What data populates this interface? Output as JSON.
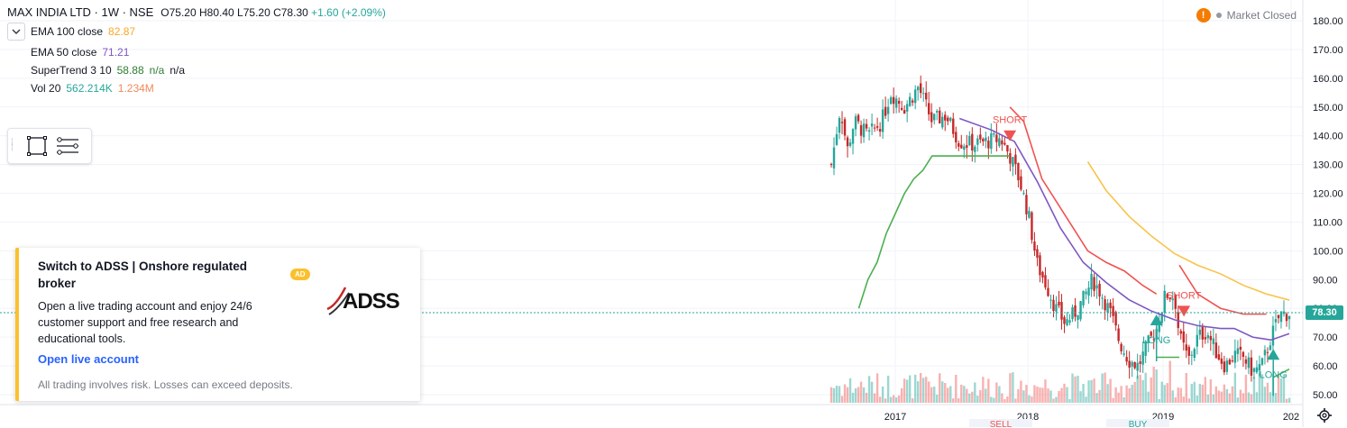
{
  "header": {
    "symbol_title": "MAX INDIA LTD · 1W · NSE",
    "ohlc": {
      "open": "O75.20",
      "high": "H80.40",
      "low": "L75.20",
      "close": "C78.30",
      "change": "+1.60 (+2.09%)"
    },
    "collapse_icon": "chevron-down-icon"
  },
  "indicators": [
    {
      "label": "EMA 100 close",
      "values": [
        "82.87"
      ],
      "colors": [
        "#f9a825"
      ]
    },
    {
      "label": "EMA 50 close",
      "values": [
        "71.21"
      ],
      "colors": [
        "#7e57c2"
      ]
    },
    {
      "label": "SuperTrend 3 10",
      "values": [
        "58.88",
        "n/a",
        "n/a"
      ],
      "colors": [
        "#2e7d32",
        "#2e7d32",
        "#131722"
      ]
    },
    {
      "label": "Vol 20",
      "values": [
        "562.214K",
        "1.234M"
      ],
      "colors": [
        "#26a69a",
        "#ef8a5c"
      ]
    }
  ],
  "toolbar": {
    "icons": [
      "rectangle-icon",
      "object-tree-icon"
    ]
  },
  "status": {
    "text": "Market Closed",
    "warning_icon": "!"
  },
  "ad": {
    "title": "Switch to ADSS | Onshore regulated broker",
    "badge": "AD",
    "body": "Open a live trading account and enjoy 24/6 customer support and free research and educational tools.",
    "cta": "Open live account",
    "disclaimer": "All trading involves risk. Losses can exceed deposits.",
    "logo_text": "ADSS"
  },
  "chart_data": {
    "type": "candlestick",
    "y_ticks": [
      "180.00",
      "170.00",
      "160.00",
      "150.00",
      "140.00",
      "130.00",
      "120.00",
      "110.00",
      "100.00",
      "90.00",
      "80.00",
      "70.00",
      "60.00",
      "50.00"
    ],
    "x_ticks": [
      "2017",
      "2018",
      "2019",
      "202"
    ],
    "ylim": [
      47,
      183
    ],
    "last_price": "78.30",
    "signals": [
      {
        "text": "SHORT",
        "direction": "down",
        "color": "#ef5350",
        "t": 0.39,
        "price": 140
      },
      {
        "text": "SHORT",
        "direction": "down",
        "color": "#ef5350",
        "t": 0.77,
        "price": 79
      },
      {
        "text": "LONG",
        "direction": "up",
        "color": "#26a69a",
        "t": 0.71,
        "price": 76
      },
      {
        "text": "LONG",
        "direction": "up",
        "color": "#26a69a",
        "t": 0.965,
        "price": 64
      }
    ],
    "bottom_labels": [
      "SELL",
      "BUY"
    ],
    "close_path": [
      [
        0,
        130
      ],
      [
        0.02,
        150
      ],
      [
        0.035,
        135
      ],
      [
        0.05,
        145
      ],
      [
        0.08,
        140
      ],
      [
        0.11,
        145
      ],
      [
        0.13,
        155
      ],
      [
        0.16,
        150
      ],
      [
        0.19,
        157
      ],
      [
        0.22,
        145
      ],
      [
        0.25,
        147
      ],
      [
        0.28,
        138
      ],
      [
        0.31,
        137
      ],
      [
        0.34,
        138
      ],
      [
        0.37,
        139
      ],
      [
        0.39,
        133
      ],
      [
        0.41,
        125
      ],
      [
        0.43,
        113
      ],
      [
        0.45,
        95
      ],
      [
        0.47,
        88
      ],
      [
        0.49,
        80
      ],
      [
        0.51,
        75
      ],
      [
        0.53,
        78
      ],
      [
        0.55,
        83
      ],
      [
        0.57,
        90
      ],
      [
        0.59,
        85
      ],
      [
        0.61,
        78
      ],
      [
        0.63,
        68
      ],
      [
        0.65,
        62
      ],
      [
        0.67,
        60
      ],
      [
        0.69,
        67
      ],
      [
        0.71,
        73
      ],
      [
        0.73,
        85
      ],
      [
        0.75,
        84
      ],
      [
        0.76,
        70
      ],
      [
        0.78,
        62
      ],
      [
        0.8,
        70
      ],
      [
        0.82,
        72
      ],
      [
        0.84,
        65
      ],
      [
        0.86,
        60
      ],
      [
        0.88,
        64
      ],
      [
        0.9,
        63
      ],
      [
        0.92,
        58
      ],
      [
        0.94,
        60
      ],
      [
        0.96,
        70
      ],
      [
        0.98,
        78
      ],
      [
        1.0,
        78.3
      ]
    ],
    "ema100": [
      [
        0.56,
        131
      ],
      [
        0.6,
        121
      ],
      [
        0.65,
        112
      ],
      [
        0.7,
        105
      ],
      [
        0.75,
        99
      ],
      [
        0.8,
        95
      ],
      [
        0.85,
        92
      ],
      [
        0.9,
        88
      ],
      [
        0.95,
        85
      ],
      [
        1.0,
        82.87
      ]
    ],
    "ema50": [
      [
        0.28,
        146
      ],
      [
        0.35,
        142
      ],
      [
        0.4,
        138
      ],
      [
        0.45,
        124
      ],
      [
        0.5,
        108
      ],
      [
        0.55,
        96
      ],
      [
        0.6,
        89
      ],
      [
        0.65,
        83
      ],
      [
        0.7,
        79
      ],
      [
        0.75,
        76
      ],
      [
        0.8,
        74
      ],
      [
        0.85,
        73
      ],
      [
        0.88,
        73
      ],
      [
        0.92,
        70
      ],
      [
        0.96,
        69
      ],
      [
        1.0,
        71.21
      ]
    ],
    "supertrend_up_1": [
      [
        0.06,
        80
      ],
      [
        0.08,
        90
      ],
      [
        0.1,
        96
      ],
      [
        0.12,
        106
      ],
      [
        0.14,
        113
      ],
      [
        0.16,
        120
      ],
      [
        0.18,
        125
      ],
      [
        0.2,
        128
      ],
      [
        0.22,
        133
      ],
      [
        0.3,
        133
      ],
      [
        0.39,
        133
      ]
    ],
    "supertrend_down_1": [
      [
        0.39,
        150
      ],
      [
        0.42,
        145
      ],
      [
        0.46,
        125
      ],
      [
        0.52,
        110
      ],
      [
        0.56,
        100
      ],
      [
        0.6,
        96
      ],
      [
        0.64,
        93
      ],
      [
        0.68,
        88
      ],
      [
        0.71,
        85
      ]
    ],
    "supertrend_up_2": [
      [
        0.71,
        63
      ],
      [
        0.76,
        63
      ]
    ],
    "supertrend_down_2": [
      [
        0.76,
        95
      ],
      [
        0.8,
        85
      ],
      [
        0.85,
        80
      ],
      [
        0.9,
        78
      ],
      [
        0.95,
        78
      ]
    ],
    "supertrend_up_3": [
      [
        0.965,
        56
      ],
      [
        1.0,
        58.88
      ]
    ]
  }
}
